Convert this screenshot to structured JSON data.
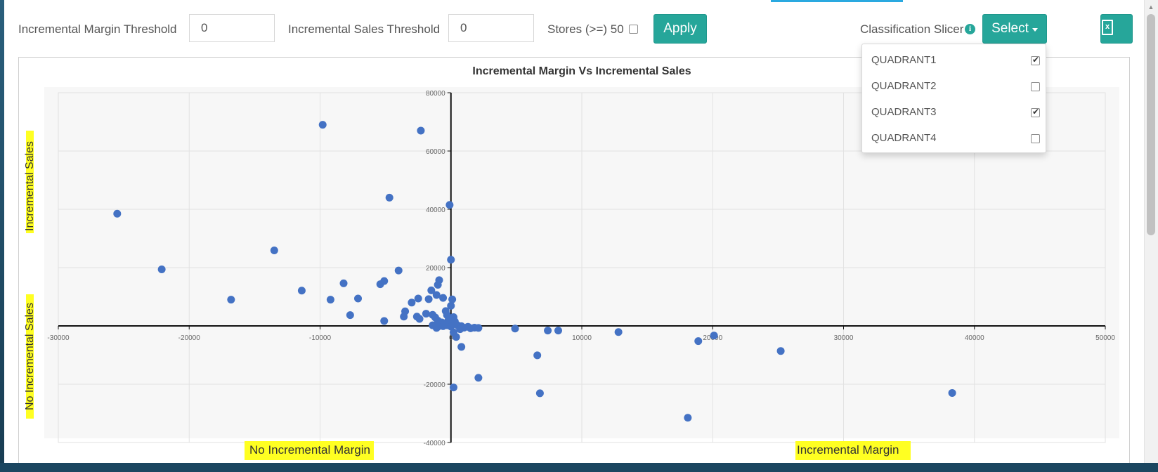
{
  "toolbar": {
    "margin_threshold_label": "Incremental Margin Threshold",
    "margin_threshold_value": "0",
    "sales_threshold_label": "Incremental Sales Threshold",
    "sales_threshold_value": "0",
    "stores_label": "Stores (>=) 50",
    "stores_checked": false,
    "apply_label": "Apply",
    "classification_label": "Classification Slicer",
    "select_label": "Select",
    "export_icon": "excel-export-icon"
  },
  "dropdown": {
    "items": [
      {
        "label": "QUADRANT1",
        "checked": true
      },
      {
        "label": "QUADRANT2",
        "checked": false
      },
      {
        "label": "QUADRANT3",
        "checked": true
      },
      {
        "label": "QUADRANT4",
        "checked": false
      }
    ]
  },
  "annotations": {
    "left_top": "Incremental Sales",
    "left_bottom": "No Incremental Sales",
    "bottom_left": "No Incremental Margin",
    "bottom_right": "Incremental Margin"
  },
  "colors": {
    "accent": "#26a69a",
    "point": "#4472c4",
    "highlight": "#ffff22"
  },
  "chart_data": {
    "type": "scatter",
    "title": "Incremental Margin Vs Incremental Sales",
    "xlabel": "",
    "ylabel": "",
    "xlim": [
      -30000,
      50000
    ],
    "ylim": [
      -40000,
      80000
    ],
    "x_ticks": [
      -30000,
      -20000,
      -10000,
      0,
      10000,
      20000,
      30000,
      40000,
      50000
    ],
    "y_ticks": [
      -40000,
      -20000,
      0,
      20000,
      40000,
      60000,
      80000
    ],
    "grid": true,
    "series": [
      {
        "points": [
          [
            -9800,
            69000
          ],
          [
            -2300,
            67000
          ],
          [
            -25500,
            38500
          ],
          [
            -4700,
            44000
          ],
          [
            -100,
            41500
          ],
          [
            -13500,
            25900
          ],
          [
            -22100,
            19400
          ],
          [
            0,
            22700
          ],
          [
            -4000,
            19000
          ],
          [
            -11400,
            12100
          ],
          [
            -16800,
            9000
          ],
          [
            -8200,
            14600
          ],
          [
            -5400,
            14300
          ],
          [
            -5100,
            15400
          ],
          [
            -9200,
            9000
          ],
          [
            -7100,
            9400
          ],
          [
            -7700,
            3700
          ],
          [
            -5100,
            1700
          ],
          [
            -3000,
            8000
          ],
          [
            -3500,
            5000
          ],
          [
            -3600,
            3200
          ],
          [
            -2600,
            3200
          ],
          [
            -2400,
            2400
          ],
          [
            -2500,
            9400
          ],
          [
            -1700,
            9200
          ],
          [
            -1500,
            12200
          ],
          [
            -1100,
            10600
          ],
          [
            -900,
            15700
          ],
          [
            -600,
            9600
          ],
          [
            -1000,
            14100
          ],
          [
            -400,
            5100
          ],
          [
            -300,
            3700
          ],
          [
            100,
            9100
          ],
          [
            0,
            6900
          ],
          [
            -1400,
            3800
          ],
          [
            -1900,
            4200
          ],
          [
            -1200,
            2900
          ],
          [
            -700,
            1200
          ],
          [
            -500,
            600
          ],
          [
            -300,
            200
          ],
          [
            -1000,
            1800
          ],
          [
            -200,
            1900
          ],
          [
            200,
            3000
          ],
          [
            300,
            1500
          ],
          [
            -1400,
            200
          ],
          [
            -1000,
            -300
          ],
          [
            -600,
            -100
          ],
          [
            0,
            -200
          ],
          [
            500,
            200
          ],
          [
            800,
            -100
          ],
          [
            1000,
            -600
          ],
          [
            1300,
            -300
          ],
          [
            1500,
            -800
          ],
          [
            1800,
            -600
          ],
          [
            2100,
            -700
          ],
          [
            200,
            -2200
          ],
          [
            400,
            -3800
          ],
          [
            -1100,
            -700
          ],
          [
            700,
            -1100
          ],
          [
            800,
            -7200
          ],
          [
            2100,
            -17800
          ],
          [
            200,
            -21100
          ],
          [
            4900,
            -900
          ],
          [
            7400,
            -1600
          ],
          [
            8200,
            -1600
          ],
          [
            12800,
            -2100
          ],
          [
            6600,
            -10100
          ],
          [
            6800,
            -23100
          ],
          [
            18900,
            -5200
          ],
          [
            20100,
            -3300
          ],
          [
            25200,
            -8600
          ],
          [
            18100,
            -31500
          ],
          [
            38300,
            -23000
          ]
        ]
      }
    ]
  }
}
